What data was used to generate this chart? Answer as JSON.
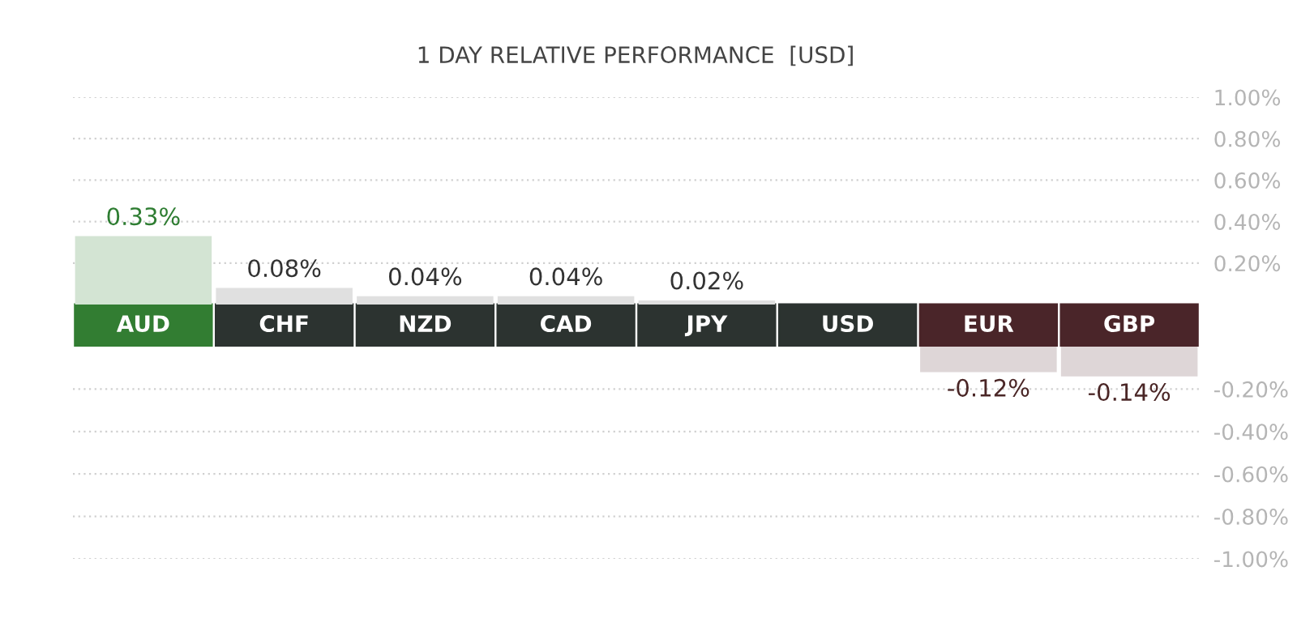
{
  "chart_data": [
    {
      "type": "bar",
      "title": "1 DAY RELATIVE PERFORMANCE  [USD]",
      "categories": [
        "AUD",
        "CHF",
        "NZD",
        "CAD",
        "JPY",
        "USD",
        "EUR",
        "GBP"
      ],
      "values": [
        0.33,
        0.08,
        0.04,
        0.04,
        0.02,
        null,
        null,
        null
      ],
      "colors": [
        "#d3e4d3",
        "#e0e0e0",
        "#e0e0e0",
        "#e0e0e0",
        "#e0e0e0",
        "#e0e0e0",
        "#ded6d7",
        "#ded6d7"
      ],
      "value_labels": [
        "0.33%",
        "0.08%",
        "0.04%",
        "0.04%",
        "0.02%",
        null,
        null,
        null
      ],
      "ylim": [
        0,
        1.0
      ],
      "yticks": [
        {
          "value": 1.0,
          "label": "1.00%"
        },
        {
          "value": 0.8,
          "label": "0.80%"
        },
        {
          "value": 0.6,
          "label": "0.60%"
        },
        {
          "value": 0.4,
          "label": "0.40%"
        },
        {
          "value": 0.2,
          "label": "0.20%"
        }
      ],
      "grid": "y"
    },
    {
      "type": "bar",
      "categories": [
        null,
        null,
        null,
        null,
        null,
        null,
        null,
        null
      ],
      "values": [
        null,
        null,
        null,
        null,
        null,
        null,
        -0.12,
        -0.14
      ],
      "colors": [
        "#e0e0e0",
        "#e0e0e0",
        "#e0e0e0",
        "#e0e0e0",
        "#e0e0e0",
        "#e0e0e0",
        "#ded6d7",
        "#ded6d7"
      ],
      "value_labels": [
        null,
        null,
        null,
        null,
        null,
        null,
        "-0.12%",
        "-0.14%"
      ],
      "ylim": [
        -1.0,
        0
      ],
      "yticks": [
        {
          "value": -0.2,
          "label": "-0.20%"
        },
        {
          "value": -0.4,
          "label": "-0.40%"
        },
        {
          "value": -0.6,
          "label": "-0.60%"
        },
        {
          "value": -0.8,
          "label": "-0.80%"
        },
        {
          "value": -1.0,
          "label": "-1.00%"
        }
      ],
      "tick_labels": "y",
      "grid": "y"
    }
  ]
}
